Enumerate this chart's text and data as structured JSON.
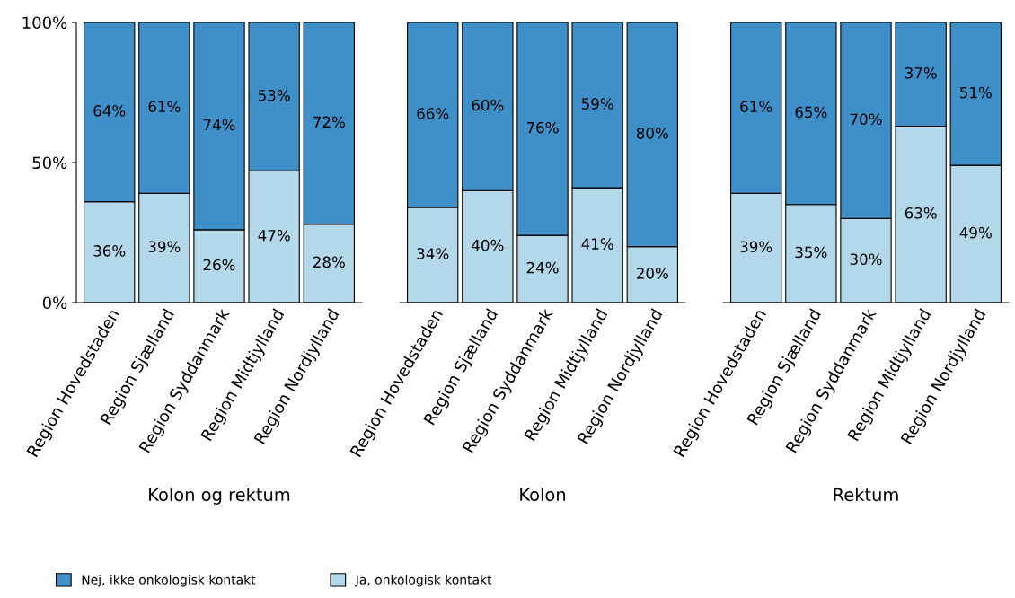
{
  "chart_data": [
    {
      "type": "bar",
      "stacked": true,
      "xlabel": "Kolon og rektum",
      "categories": [
        "Region Hovedstaden",
        "Region Sjælland",
        "Region Syddanmark",
        "Region Midtjylland",
        "Region Nordjylland"
      ],
      "series": [
        {
          "name": "Ja, onkologisk kontakt",
          "color": "#b3d8ea",
          "values": [
            36,
            39,
            26,
            47,
            28
          ],
          "value_labels": [
            "36%",
            "39%",
            "26%",
            "47%",
            "28%"
          ]
        },
        {
          "name": "Nej, ikke onkologisk kontakt",
          "color": "#3f8fc9",
          "values": [
            64,
            61,
            74,
            53,
            72
          ],
          "value_labels": [
            "64%",
            "61%",
            "74%",
            "53%",
            "72%"
          ]
        }
      ],
      "ylim": [
        0,
        100
      ],
      "yticks": [
        {
          "value": 0,
          "label": "0%"
        },
        {
          "value": 50,
          "label": "50%"
        },
        {
          "value": 100,
          "label": "100%"
        }
      ],
      "legend": "bottom",
      "grid": false
    },
    {
      "type": "bar",
      "stacked": true,
      "xlabel": "Kolon",
      "categories": [
        "Region Hovedstaden",
        "Region Sjælland",
        "Region Syddanmark",
        "Region Midtjylland",
        "Region Nordjylland"
      ],
      "series": [
        {
          "color": "#b3d8ea",
          "values": [
            34,
            40,
            24,
            41,
            20
          ],
          "value_labels": [
            "34%",
            "40%",
            "24%",
            "41%",
            "20%"
          ]
        },
        {
          "color": "#3f8fc9",
          "values": [
            66,
            60,
            76,
            59,
            80
          ],
          "value_labels": [
            "66%",
            "60%",
            "76%",
            "59%",
            "80%"
          ]
        }
      ],
      "ylim": [
        0,
        100
      ],
      "tick_labels": "x",
      "grid": false
    },
    {
      "type": "bar",
      "stacked": true,
      "xlabel": "Rektum",
      "categories": [
        "Region Hovedstaden",
        "Region Sjælland",
        "Region Syddanmark",
        "Region Midtjylland",
        "Region Nordjylland"
      ],
      "series": [
        {
          "color": "#b3d8ea",
          "values": [
            39,
            35,
            30,
            63,
            49
          ],
          "value_labels": [
            "39%",
            "35%",
            "30%",
            "63%",
            "49%"
          ]
        },
        {
          "color": "#3f8fc9",
          "values": [
            61,
            65,
            70,
            37,
            51
          ],
          "value_labels": [
            "61%",
            "65%",
            "70%",
            "37%",
            "51%"
          ]
        }
      ],
      "ylim": [
        0,
        100
      ],
      "tick_labels": "x",
      "grid": false
    }
  ]
}
